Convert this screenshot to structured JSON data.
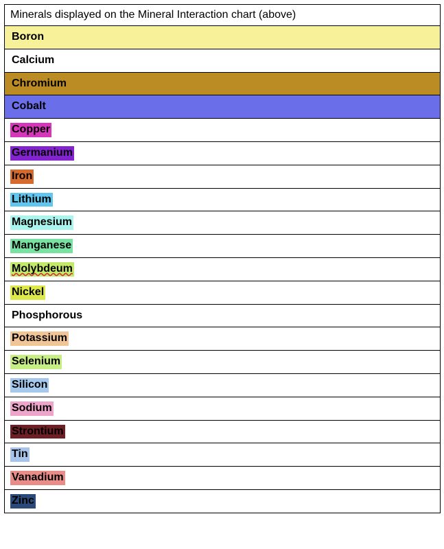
{
  "table": {
    "header": "Minerals displayed on the Mineral Interaction chart (above)",
    "header_fontsize": 16,
    "label_fontsize": 16,
    "label_fontweight": "bold",
    "border_color": "#000000",
    "background_color": "#ffffff",
    "rows": [
      {
        "label": "Boron",
        "highlight": "#f7f29a",
        "full_row": true,
        "text_color": "#000000",
        "spellcheck": false
      },
      {
        "label": "Calcium",
        "highlight": "#ffffff",
        "full_row": true,
        "text_color": "#000000",
        "spellcheck": false
      },
      {
        "label": "Chromium",
        "highlight": "#bb8c23",
        "full_row": true,
        "text_color": "#000000",
        "spellcheck": false
      },
      {
        "label": "Cobalt",
        "highlight": "#6a6ee8",
        "full_row": true,
        "text_color": "#000000",
        "spellcheck": false
      },
      {
        "label": "Copper",
        "highlight": "#d636ba",
        "full_row": false,
        "text_color": "#000000",
        "spellcheck": false
      },
      {
        "label": "Germanium",
        "highlight": "#8323cf",
        "full_row": false,
        "text_color": "#000000",
        "spellcheck": false
      },
      {
        "label": "Iron",
        "highlight": "#d56a2c",
        "full_row": false,
        "text_color": "#000000",
        "spellcheck": false
      },
      {
        "label": "Lithium",
        "highlight": "#61c6ed",
        "full_row": false,
        "text_color": "#000000",
        "spellcheck": false
      },
      {
        "label": "Magnesium",
        "highlight": "#a9f5ee",
        "full_row": false,
        "text_color": "#000000",
        "spellcheck": false
      },
      {
        "label": "Manganese",
        "highlight": "#79e2a3",
        "full_row": false,
        "text_color": "#000000",
        "spellcheck": false
      },
      {
        "label": "Molybdeum",
        "highlight": "#c4e86a",
        "full_row": false,
        "text_color": "#000000",
        "spellcheck": true
      },
      {
        "label": "Nickel",
        "highlight": "#dde84a",
        "full_row": false,
        "text_color": "#000000",
        "spellcheck": false
      },
      {
        "label": "Phosphorous",
        "highlight": "#ffffff",
        "full_row": false,
        "text_color": "#000000",
        "spellcheck": false
      },
      {
        "label": "Potassium",
        "highlight": "#f1c596",
        "full_row": false,
        "text_color": "#000000",
        "spellcheck": false
      },
      {
        "label": "Selenium",
        "highlight": "#c7ed85",
        "full_row": false,
        "text_color": "#000000",
        "spellcheck": false
      },
      {
        "label": "Silicon",
        "highlight": "#a4c9ed",
        "full_row": false,
        "text_color": "#000000",
        "spellcheck": false
      },
      {
        "label": "Sodium",
        "highlight": "#eea5cb",
        "full_row": false,
        "text_color": "#000000",
        "spellcheck": false
      },
      {
        "label": "Strontium",
        "highlight": "#6d1f25",
        "full_row": false,
        "text_color": "#000000",
        "spellcheck": false
      },
      {
        "label": "Tin",
        "highlight": "#a7c3ea",
        "full_row": false,
        "text_color": "#000000",
        "spellcheck": false
      },
      {
        "label": "Vanadium",
        "highlight": "#e98d89",
        "full_row": false,
        "text_color": "#000000",
        "spellcheck": false
      },
      {
        "label": "Zinc",
        "highlight": "#2b4a7a",
        "full_row": false,
        "text_color": "#000000",
        "spellcheck": false
      }
    ]
  }
}
